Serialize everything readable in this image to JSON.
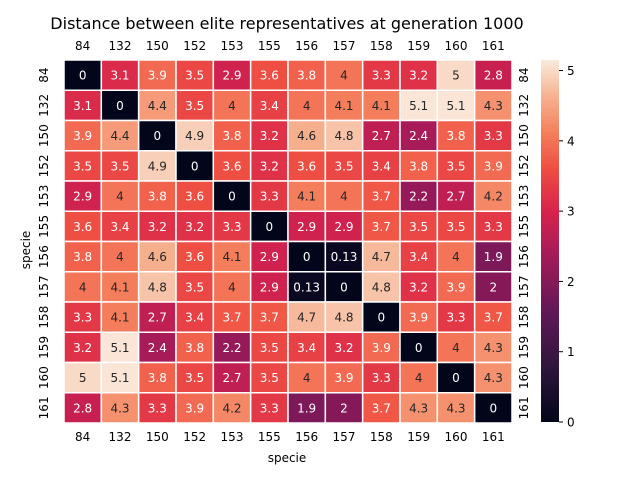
{
  "chart_data": {
    "type": "heatmap",
    "title": "Distance between elite representatives at generation 1000",
    "xlabel": "specie",
    "ylabel": "specie",
    "categories": [
      "84",
      "132",
      "150",
      "152",
      "153",
      "155",
      "156",
      "157",
      "158",
      "159",
      "160",
      "161"
    ],
    "values": [
      [
        0,
        3.1,
        3.9,
        3.5,
        2.9,
        3.6,
        3.8,
        4,
        3.3,
        3.2,
        5,
        2.8
      ],
      [
        3.1,
        0,
        4.4,
        3.5,
        4,
        3.4,
        4,
        4.1,
        4.1,
        5.1,
        5.1,
        4.3
      ],
      [
        3.9,
        4.4,
        0,
        4.9,
        3.8,
        3.2,
        4.6,
        4.8,
        2.7,
        2.4,
        3.8,
        3.3
      ],
      [
        3.5,
        3.5,
        4.9,
        0,
        3.6,
        3.2,
        3.6,
        3.5,
        3.4,
        3.8,
        3.5,
        3.9
      ],
      [
        2.9,
        4,
        3.8,
        3.6,
        0,
        3.3,
        4.1,
        4,
        3.7,
        2.2,
        2.7,
        4.2
      ],
      [
        3.6,
        3.4,
        3.2,
        3.2,
        3.3,
        0,
        2.9,
        2.9,
        3.7,
        3.5,
        3.5,
        3.3
      ],
      [
        3.8,
        4,
        4.6,
        3.6,
        4.1,
        2.9,
        0,
        0.13,
        4.7,
        3.4,
        4,
        1.9
      ],
      [
        4,
        4.1,
        4.8,
        3.5,
        4,
        2.9,
        0.13,
        0,
        4.8,
        3.2,
        3.9,
        2
      ],
      [
        3.3,
        4.1,
        2.7,
        3.4,
        3.7,
        3.7,
        4.7,
        4.8,
        0,
        3.9,
        3.3,
        3.7
      ],
      [
        3.2,
        5.1,
        2.4,
        3.8,
        2.2,
        3.5,
        3.4,
        3.2,
        3.9,
        0,
        4,
        4.3
      ],
      [
        5,
        5.1,
        3.8,
        3.5,
        2.7,
        3.5,
        4,
        3.9,
        3.3,
        4,
        0,
        4.3
      ],
      [
        2.8,
        4.3,
        3.3,
        3.9,
        4.2,
        3.3,
        1.9,
        2,
        3.7,
        4.3,
        4.3,
        0
      ]
    ],
    "colorbar": {
      "min": 0,
      "max": 5.15,
      "ticks": [
        "0",
        "1",
        "2",
        "3",
        "4",
        "5"
      ]
    },
    "colormap": "rocket",
    "cell_border_color": "#ffffff"
  }
}
